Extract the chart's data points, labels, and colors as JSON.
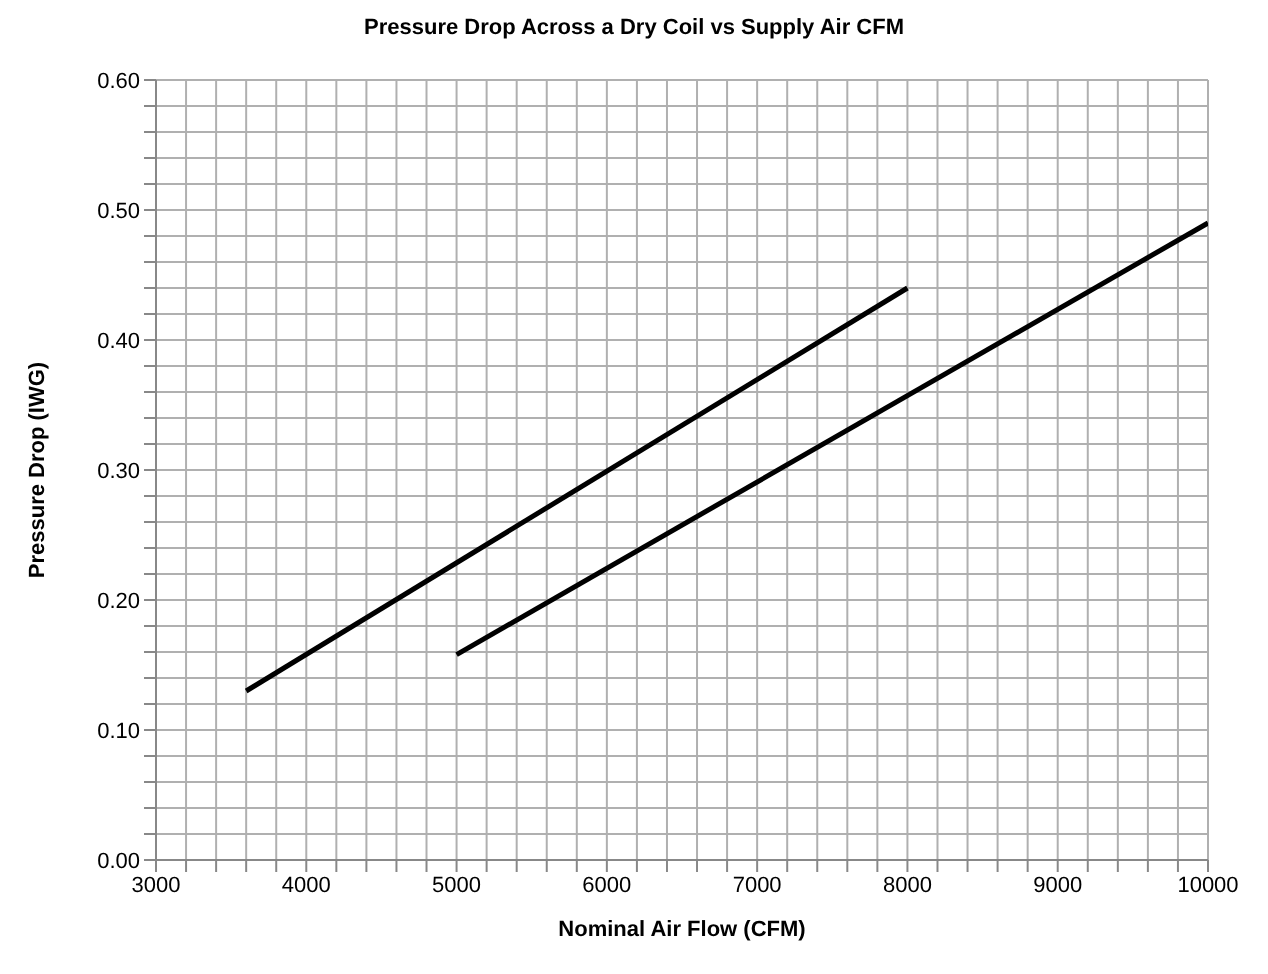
{
  "chart_data": {
    "type": "line",
    "title": "Pressure Drop Across a Dry Coil vs Supply Air CFM",
    "xlabel": "Nominal Air Flow (CFM)",
    "ylabel": "Pressure Drop (IWG)",
    "series": [
      {
        "color": "#000000",
        "x": [
          3600,
          8000
        ],
        "values": [
          0.13,
          0.44
        ]
      },
      {
        "color": "#000000",
        "x": [
          5000,
          10000
        ],
        "values": [
          0.158,
          0.49
        ]
      }
    ],
    "xlim": [
      3000,
      10000
    ],
    "xticks": [
      3000,
      {
        "value": 3200,
        "label": null
      },
      {
        "value": 3400,
        "label": null
      },
      {
        "value": 3600,
        "label": null
      },
      {
        "value": 3800,
        "label": null
      },
      4000,
      {
        "value": 4200,
        "label": null
      },
      {
        "value": 4400,
        "label": null
      },
      {
        "value": 4600,
        "label": null
      },
      {
        "value": 4800,
        "label": null
      },
      5000,
      {
        "value": 5200,
        "label": null
      },
      {
        "value": 5400,
        "label": null
      },
      {
        "value": 5600,
        "label": null
      },
      {
        "value": 5800,
        "label": null
      },
      6000,
      {
        "value": 6200,
        "label": null
      },
      {
        "value": 6400,
        "label": null
      },
      {
        "value": 6600,
        "label": null
      },
      {
        "value": 6800,
        "label": null
      },
      7000,
      {
        "value": 7200,
        "label": null
      },
      {
        "value": 7400,
        "label": null
      },
      {
        "value": 7600,
        "label": null
      },
      {
        "value": 7800,
        "label": null
      },
      8000,
      {
        "value": 8200,
        "label": null
      },
      {
        "value": 8400,
        "label": null
      },
      {
        "value": 8600,
        "label": null
      },
      {
        "value": 8800,
        "label": null
      },
      9000,
      {
        "value": 9200,
        "label": null
      },
      {
        "value": 9400,
        "label": null
      },
      {
        "value": 9600,
        "label": null
      },
      {
        "value": 9800,
        "label": null
      },
      10000
    ],
    "ylim": [
      0,
      0.6
    ],
    "yticks": [
      {
        "value": 0,
        "label": "0.00"
      },
      {
        "value": 0.02,
        "label": null
      },
      {
        "value": 0.04,
        "label": null
      },
      {
        "value": 0.06,
        "label": null
      },
      {
        "value": 0.08,
        "label": null
      },
      {
        "value": 0.1,
        "label": "0.10"
      },
      {
        "value": 0.12,
        "label": null
      },
      {
        "value": 0.14,
        "label": null
      },
      {
        "value": 0.16,
        "label": null
      },
      {
        "value": 0.18,
        "label": null
      },
      {
        "value": 0.2,
        "label": "0.20"
      },
      {
        "value": 0.22,
        "label": null
      },
      {
        "value": 0.24,
        "label": null
      },
      {
        "value": 0.26,
        "label": null
      },
      {
        "value": 0.28,
        "label": null
      },
      {
        "value": 0.3,
        "label": "0.30"
      },
      {
        "value": 0.32,
        "label": null
      },
      {
        "value": 0.34,
        "label": null
      },
      {
        "value": 0.36,
        "label": null
      },
      {
        "value": 0.38,
        "label": null
      },
      {
        "value": 0.4,
        "label": "0.40"
      },
      {
        "value": 0.42,
        "label": null
      },
      {
        "value": 0.44,
        "label": null
      },
      {
        "value": 0.46,
        "label": null
      },
      {
        "value": 0.48,
        "label": null
      },
      {
        "value": 0.5,
        "label": "0.50"
      },
      {
        "value": 0.52,
        "label": null
      },
      {
        "value": 0.54,
        "label": null
      },
      {
        "value": 0.56,
        "label": null
      },
      {
        "value": 0.58,
        "label": null
      },
      {
        "value": 0.6,
        "label": "0.60"
      }
    ],
    "grid": true,
    "marker": "none",
    "line_style": "solid"
  }
}
